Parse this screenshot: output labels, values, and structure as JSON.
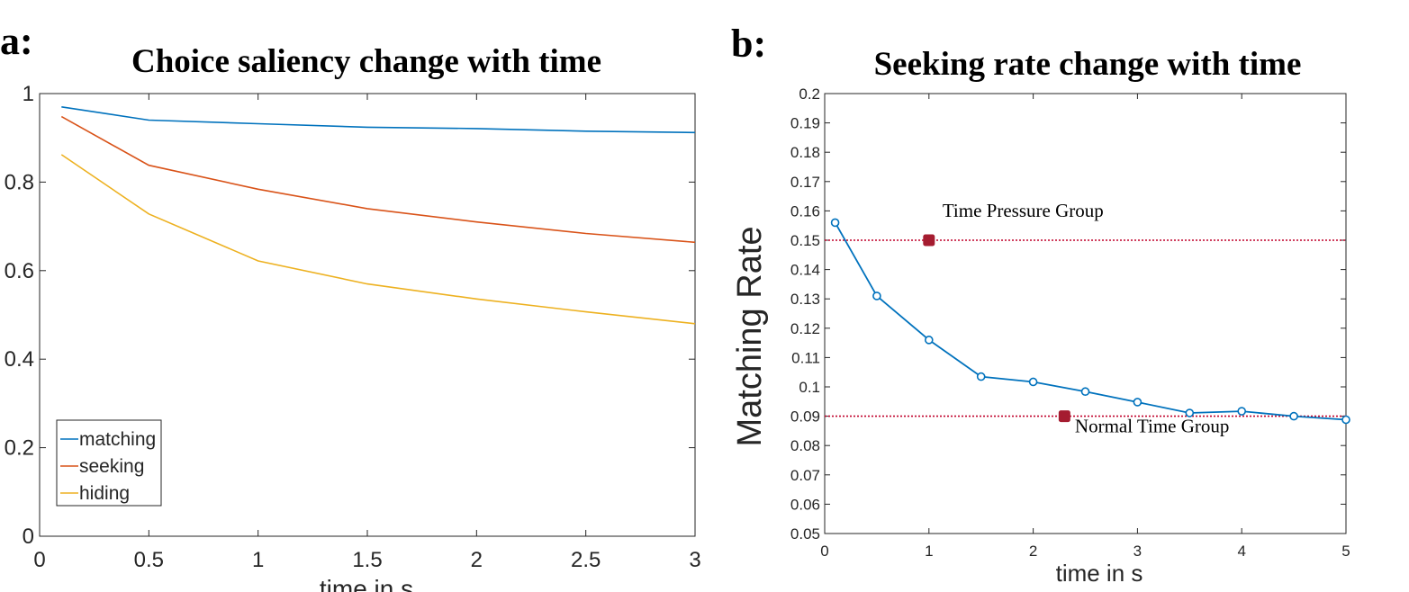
{
  "chart_data": [
    {
      "id": "a",
      "type": "line",
      "panel_label": "a:",
      "title": "Choice saliency change with time",
      "xlabel": "time in s",
      "ylabel": "",
      "xlim": [
        0,
        3
      ],
      "ylim": [
        0,
        1
      ],
      "xticks": [
        0,
        0.5,
        1,
        1.5,
        2,
        2.5,
        3
      ],
      "xtick_labels": [
        "0",
        "0.5",
        "1",
        "1.5",
        "2",
        "2.5",
        "3"
      ],
      "yticks": [
        0,
        0.2,
        0.4,
        0.6,
        0.8,
        1
      ],
      "ytick_labels": [
        "0",
        "0.2",
        "0.4",
        "0.6",
        "0.8",
        "1"
      ],
      "x": [
        0.1,
        0.5,
        1,
        1.5,
        2,
        2.5,
        3
      ],
      "series": [
        {
          "name": "matching",
          "color": "#0072BD",
          "values": [
            0.97,
            0.94,
            0.932,
            0.924,
            0.921,
            0.915,
            0.912
          ]
        },
        {
          "name": "seeking",
          "color": "#D95319",
          "values": [
            0.948,
            0.838,
            0.784,
            0.74,
            0.71,
            0.684,
            0.664
          ]
        },
        {
          "name": "hiding",
          "color": "#EDB120",
          "values": [
            0.862,
            0.728,
            0.622,
            0.57,
            0.536,
            0.507,
            0.48
          ]
        }
      ],
      "legend": "bottom-left",
      "grid": false
    },
    {
      "id": "b",
      "type": "line",
      "panel_label": "b:",
      "title": "Seeking rate change with time",
      "xlabel": "time in s",
      "ylabel": "Matching Rate",
      "xlim": [
        0,
        5
      ],
      "ylim": [
        0.05,
        0.2
      ],
      "xticks": [
        0,
        1,
        2,
        3,
        4,
        5
      ],
      "xtick_labels": [
        "0",
        "1",
        "2",
        "3",
        "4",
        "5"
      ],
      "yticks": [
        0.05,
        0.06,
        0.07,
        0.08,
        0.09,
        0.1,
        0.11,
        0.12,
        0.13,
        0.14,
        0.15,
        0.16,
        0.17,
        0.18,
        0.19,
        0.2
      ],
      "ytick_labels": [
        "0.05",
        "0.06",
        "0.07",
        "0.08",
        "0.09",
        "0.1",
        "0.11",
        "0.12",
        "0.13",
        "0.14",
        "0.15",
        "0.16",
        "0.17",
        "0.18",
        "0.19",
        "0.2"
      ],
      "series": [
        {
          "color": "#0072BD",
          "marker": "circle",
          "x": [
            0.1,
            0.5,
            1,
            1.5,
            2,
            2.5,
            3,
            3.5,
            4,
            4.5,
            5
          ],
          "values": [
            0.156,
            0.131,
            0.116,
            0.1035,
            0.1017,
            0.0984,
            0.0948,
            0.0911,
            0.0917,
            0.09,
            0.0888
          ]
        }
      ],
      "reference_lines": [
        {
          "y": 0.15,
          "color": "#C0002A"
        },
        {
          "y": 0.09,
          "color": "#C0002A"
        }
      ],
      "group_points": [
        {
          "x": 1.0,
          "y": 0.15,
          "color": "#A51C30"
        },
        {
          "x": 2.3,
          "y": 0.09,
          "color": "#A51C30"
        }
      ],
      "annotations": [
        {
          "text": "Time Pressure Group",
          "x": 1.13,
          "y": 0.158
        },
        {
          "text": "Normal Time Group",
          "x": 2.4,
          "y": 0.0845
        }
      ],
      "grid": false
    }
  ]
}
